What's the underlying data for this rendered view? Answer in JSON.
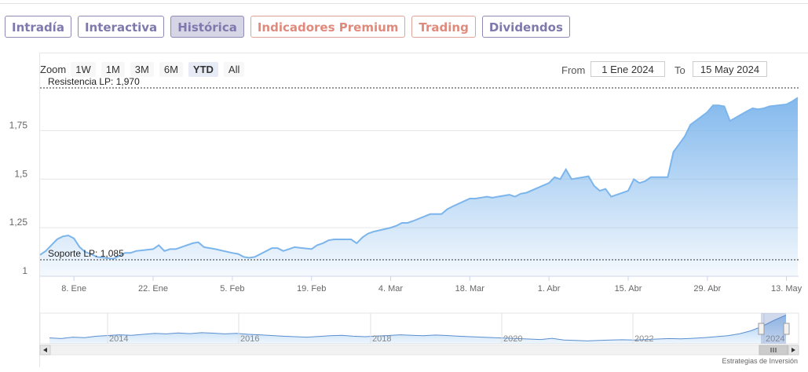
{
  "tabs": [
    {
      "label": "Intradía",
      "active": false,
      "warm": false
    },
    {
      "label": "Interactiva",
      "active": false,
      "warm": false
    },
    {
      "label": "Histórica",
      "active": true,
      "warm": false
    },
    {
      "label": "Indicadores Premium",
      "active": false,
      "warm": true
    },
    {
      "label": "Trading",
      "active": false,
      "warm": true
    },
    {
      "label": "Dividendos",
      "active": false,
      "warm": false
    }
  ],
  "zoom": {
    "label": "Zoom",
    "buttons": [
      "1W",
      "1M",
      "3M",
      "6M",
      "YTD",
      "All"
    ],
    "selected": "YTD"
  },
  "range": {
    "from_label": "From",
    "from": "1 Ene 2024",
    "to_label": "To",
    "to": "15 May 2024"
  },
  "credit": "Estrategias de Inversión",
  "colors": {
    "line": "#7cb5ec",
    "tab_border": "#8e8ab5",
    "tab_warm": "#e08a7c",
    "level_line": "#333333"
  },
  "chart_data": {
    "type": "area",
    "x_start": "2024-01-02",
    "x_end": "2024-05-15",
    "ylim": [
      1.0,
      1.97
    ],
    "yticks": [
      "1",
      "1,25",
      "1,5",
      "1,75"
    ],
    "ytick_values": [
      1.0,
      1.25,
      1.5,
      1.75
    ],
    "xticks": [
      {
        "label": "8. Ene",
        "date": "2024-01-08"
      },
      {
        "label": "22. Ene",
        "date": "2024-01-22"
      },
      {
        "label": "5. Feb",
        "date": "2024-02-05"
      },
      {
        "label": "19. Feb",
        "date": "2024-02-19"
      },
      {
        "label": "4. Mar",
        "date": "2024-03-04"
      },
      {
        "label": "18. Mar",
        "date": "2024-03-18"
      },
      {
        "label": "1. Abr",
        "date": "2024-04-01"
      },
      {
        "label": "15. Abr",
        "date": "2024-04-15"
      },
      {
        "label": "29. Abr",
        "date": "2024-04-29"
      },
      {
        "label": "13. May",
        "date": "2024-05-13"
      }
    ],
    "levels": [
      {
        "label": "Resistencia LP: 1,970",
        "value": 1.97
      },
      {
        "label": "Soporte LP: 1,085",
        "value": 1.085
      }
    ],
    "series": [
      {
        "points": [
          [
            "2024-01-02",
            1.11
          ],
          [
            "2024-01-03",
            1.13
          ],
          [
            "2024-01-04",
            1.16
          ],
          [
            "2024-01-05",
            1.19
          ],
          [
            "2024-01-06",
            1.205
          ],
          [
            "2024-01-07",
            1.21
          ],
          [
            "2024-01-08",
            1.195
          ],
          [
            "2024-01-09",
            1.15
          ],
          [
            "2024-01-10",
            1.125
          ],
          [
            "2024-01-11",
            1.115
          ],
          [
            "2024-01-12",
            1.1
          ],
          [
            "2024-01-15",
            1.09
          ],
          [
            "2024-01-16",
            1.105
          ],
          [
            "2024-01-17",
            1.12
          ],
          [
            "2024-01-18",
            1.12
          ],
          [
            "2024-01-19",
            1.13
          ],
          [
            "2024-01-22",
            1.14
          ],
          [
            "2024-01-23",
            1.16
          ],
          [
            "2024-01-24",
            1.13
          ],
          [
            "2024-01-25",
            1.14
          ],
          [
            "2024-01-26",
            1.14
          ],
          [
            "2024-01-29",
            1.17
          ],
          [
            "2024-01-30",
            1.175
          ],
          [
            "2024-01-31",
            1.15
          ],
          [
            "2024-02-01",
            1.145
          ],
          [
            "2024-02-02",
            1.14
          ],
          [
            "2024-02-05",
            1.12
          ],
          [
            "2024-02-06",
            1.115
          ],
          [
            "2024-02-07",
            1.1
          ],
          [
            "2024-02-08",
            1.095
          ],
          [
            "2024-02-09",
            1.1
          ],
          [
            "2024-02-12",
            1.145
          ],
          [
            "2024-02-13",
            1.145
          ],
          [
            "2024-02-14",
            1.13
          ],
          [
            "2024-02-15",
            1.14
          ],
          [
            "2024-02-16",
            1.15
          ],
          [
            "2024-02-19",
            1.14
          ],
          [
            "2024-02-20",
            1.16
          ],
          [
            "2024-02-21",
            1.17
          ],
          [
            "2024-02-22",
            1.185
          ],
          [
            "2024-02-23",
            1.19
          ],
          [
            "2024-02-26",
            1.19
          ],
          [
            "2024-02-27",
            1.17
          ],
          [
            "2024-02-28",
            1.2
          ],
          [
            "2024-02-29",
            1.22
          ],
          [
            "2024-03-01",
            1.23
          ],
          [
            "2024-03-04",
            1.25
          ],
          [
            "2024-03-05",
            1.26
          ],
          [
            "2024-03-06",
            1.275
          ],
          [
            "2024-03-07",
            1.275
          ],
          [
            "2024-03-08",
            1.285
          ],
          [
            "2024-03-11",
            1.32
          ],
          [
            "2024-03-12",
            1.32
          ],
          [
            "2024-03-13",
            1.32
          ],
          [
            "2024-03-14",
            1.345
          ],
          [
            "2024-03-15",
            1.36
          ],
          [
            "2024-03-18",
            1.4
          ],
          [
            "2024-03-19",
            1.4
          ],
          [
            "2024-03-20",
            1.405
          ],
          [
            "2024-03-21",
            1.41
          ],
          [
            "2024-03-22",
            1.405
          ],
          [
            "2024-03-25",
            1.42
          ],
          [
            "2024-03-26",
            1.41
          ],
          [
            "2024-03-27",
            1.425
          ],
          [
            "2024-03-28",
            1.43
          ],
          [
            "2024-04-01",
            1.48
          ],
          [
            "2024-04-02",
            1.51
          ],
          [
            "2024-04-03",
            1.5
          ],
          [
            "2024-04-04",
            1.55
          ],
          [
            "2024-04-05",
            1.5
          ],
          [
            "2024-04-08",
            1.515
          ],
          [
            "2024-04-09",
            1.465
          ],
          [
            "2024-04-10",
            1.44
          ],
          [
            "2024-04-11",
            1.45
          ],
          [
            "2024-04-12",
            1.41
          ],
          [
            "2024-04-15",
            1.44
          ],
          [
            "2024-04-16",
            1.5
          ],
          [
            "2024-04-17",
            1.48
          ],
          [
            "2024-04-18",
            1.49
          ],
          [
            "2024-04-19",
            1.51
          ],
          [
            "2024-04-22",
            1.51
          ],
          [
            "2024-04-23",
            1.64
          ],
          [
            "2024-04-24",
            1.68
          ],
          [
            "2024-04-25",
            1.72
          ],
          [
            "2024-04-26",
            1.78
          ],
          [
            "2024-04-29",
            1.845
          ],
          [
            "2024-04-30",
            1.88
          ],
          [
            "2024-05-01",
            1.88
          ],
          [
            "2024-05-02",
            1.875
          ],
          [
            "2024-05-03",
            1.8
          ],
          [
            "2024-05-06",
            1.85
          ],
          [
            "2024-05-07",
            1.865
          ],
          [
            "2024-05-08",
            1.86
          ],
          [
            "2024-05-09",
            1.865
          ],
          [
            "2024-05-10",
            1.875
          ],
          [
            "2024-05-13",
            1.885
          ],
          [
            "2024-05-14",
            1.9
          ],
          [
            "2024-05-15",
            1.92
          ]
        ]
      }
    ],
    "navigator": {
      "years": [
        "2014",
        "2016",
        "2018",
        "2020",
        "2022",
        "2024"
      ],
      "values": [
        0.95,
        0.92,
        0.98,
        0.96,
        1.02,
        1.05,
        1.08,
        1.06,
        1.1,
        1.14,
        1.12,
        1.16,
        1.13,
        1.17,
        1.15,
        1.12,
        1.14,
        1.1,
        1.08,
        1.05,
        1.02,
        1.0,
        0.98,
        1.01,
        1.04,
        1.06,
        1.02,
        1.0,
        1.03,
        1.05,
        1.08,
        1.06,
        1.04,
        1.07,
        1.05,
        1.02,
        1.0,
        0.98,
        0.96,
        0.94,
        0.92,
        0.9,
        0.88,
        0.93,
        0.86,
        0.84,
        0.82,
        0.84,
        0.86,
        0.87,
        0.86,
        0.88,
        0.9,
        0.92,
        0.91,
        0.93,
        0.96,
        1.0,
        1.04,
        1.12,
        1.25,
        1.45,
        1.7,
        1.92
      ]
    }
  }
}
